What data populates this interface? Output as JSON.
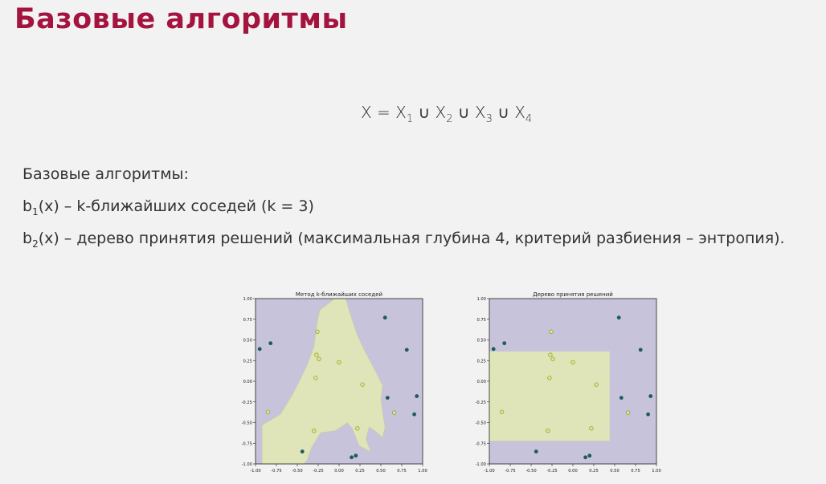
{
  "slide": {
    "title": "Базовые алгоритмы",
    "formula": {
      "lhs": "X = X",
      "subs": [
        "1",
        "2",
        "3",
        "4"
      ],
      "union": "∪"
    },
    "heading": "Базовые алгоритмы:",
    "lines": [
      {
        "b": "b",
        "sub": "1",
        "text": "(x) – k-ближайших соседей (k = 3)"
      },
      {
        "b": "b",
        "sub": "2",
        "text": "(x) – дерево принятия решений (максимальная глубина 4, критерий разбиения – энтропия)."
      }
    ]
  },
  "colors": {
    "title": "#a4143e",
    "region_a": "#c7c3da",
    "region_b": "#dfe5b8",
    "class0": "#1e5b5e",
    "class1": "#dfe38a"
  },
  "chart_data": [
    {
      "type": "scatter",
      "title": "Метод k-ближайших соседей",
      "xlim": [
        -1,
        1
      ],
      "ylim": [
        -1,
        1
      ],
      "xticks": [
        "-1.00",
        "-0.75",
        "-0.50",
        "-0.25",
        "0.00",
        "0.25",
        "0.50",
        "0.75",
        "1.00"
      ],
      "yticks": [
        "1.00",
        "0.75",
        "0.50",
        "0.25",
        "0.00",
        "-0.25",
        "-0.50",
        "-0.75",
        "-1.00"
      ],
      "series": [
        {
          "points": [
            [
              -0.95,
              0.39
            ],
            [
              -0.82,
              0.46
            ],
            [
              0.55,
              0.77
            ],
            [
              0.81,
              0.38
            ],
            [
              0.58,
              -0.2
            ],
            [
              0.93,
              -0.18
            ],
            [
              0.9,
              -0.4
            ],
            [
              -0.44,
              -0.85
            ],
            [
              0.2,
              -0.9
            ],
            [
              0.15,
              -0.92
            ]
          ]
        },
        {
          "points": [
            [
              -0.26,
              0.6
            ],
            [
              -0.27,
              0.32
            ],
            [
              -0.24,
              0.27
            ],
            [
              0.0,
              0.23
            ],
            [
              -0.28,
              0.04
            ],
            [
              0.28,
              -0.04
            ],
            [
              -0.85,
              -0.37
            ],
            [
              0.66,
              -0.38
            ],
            [
              -0.3,
              -0.6
            ],
            [
              0.22,
              -0.57
            ]
          ]
        }
      ]
    },
    {
      "type": "scatter",
      "title": "Дерево принятия решений",
      "xlim": [
        -1,
        1
      ],
      "ylim": [
        -1,
        1
      ],
      "xticks": [
        "-1.00",
        "-0.75",
        "-0.50",
        "-0.25",
        "0.00",
        "0.25",
        "0.50",
        "0.75",
        "1.00"
      ],
      "yticks": [
        "1.00",
        "0.75",
        "0.50",
        "0.25",
        "0.00",
        "-0.25",
        "-0.50",
        "-0.75",
        "-1.00"
      ],
      "series": [
        {
          "points": [
            [
              -0.95,
              0.39
            ],
            [
              -0.82,
              0.46
            ],
            [
              0.55,
              0.77
            ],
            [
              0.81,
              0.38
            ],
            [
              0.58,
              -0.2
            ],
            [
              0.93,
              -0.18
            ],
            [
              0.9,
              -0.4
            ],
            [
              -0.44,
              -0.85
            ],
            [
              0.2,
              -0.9
            ],
            [
              0.15,
              -0.92
            ]
          ]
        },
        {
          "points": [
            [
              -0.26,
              0.6
            ],
            [
              -0.27,
              0.32
            ],
            [
              -0.24,
              0.27
            ],
            [
              0.0,
              0.23
            ],
            [
              -0.28,
              0.04
            ],
            [
              0.28,
              -0.04
            ],
            [
              -0.85,
              -0.37
            ],
            [
              0.66,
              -0.38
            ],
            [
              -0.3,
              -0.6
            ],
            [
              0.22,
              -0.57
            ]
          ]
        }
      ]
    }
  ]
}
